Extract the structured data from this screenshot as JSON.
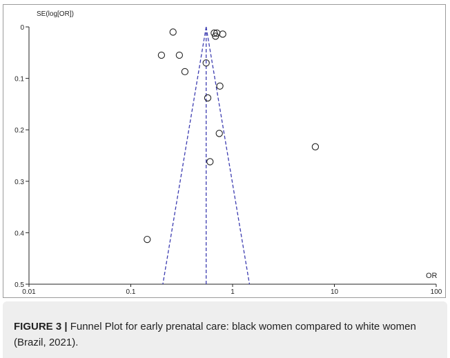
{
  "chart_data": {
    "type": "scatter",
    "ylabel": "SE(log[OR])",
    "xlabel": "OR",
    "x_scale": "log",
    "xlim": [
      0.01,
      100
    ],
    "ylim": [
      0,
      0.5
    ],
    "y_inverted": true,
    "x_ticks": [
      "0.01",
      "0.1",
      "1",
      "10",
      "100"
    ],
    "y_ticks": [
      "0",
      "0.1",
      "0.2",
      "0.3",
      "0.4",
      "0.5"
    ],
    "grid": false,
    "pooled_or": 0.55,
    "funnel_color": "#3b3bb0",
    "point_color": "#222222",
    "points": [
      {
        "x": 0.26,
        "y": 0.01
      },
      {
        "x": 0.2,
        "y": 0.055
      },
      {
        "x": 0.3,
        "y": 0.055
      },
      {
        "x": 0.34,
        "y": 0.087
      },
      {
        "x": 0.55,
        "y": 0.07
      },
      {
        "x": 0.66,
        "y": 0.012
      },
      {
        "x": 0.7,
        "y": 0.012
      },
      {
        "x": 0.68,
        "y": 0.018
      },
      {
        "x": 0.8,
        "y": 0.014
      },
      {
        "x": 0.75,
        "y": 0.115
      },
      {
        "x": 0.57,
        "y": 0.138
      },
      {
        "x": 0.74,
        "y": 0.207
      },
      {
        "x": 6.5,
        "y": 0.233
      },
      {
        "x": 0.6,
        "y": 0.262
      },
      {
        "x": 0.145,
        "y": 0.413
      }
    ]
  },
  "caption": {
    "label": "FIGURE 3 |",
    "text": " Funnel Plot for early prenatal care: black women compared to white women (Brazil, 2021)."
  }
}
